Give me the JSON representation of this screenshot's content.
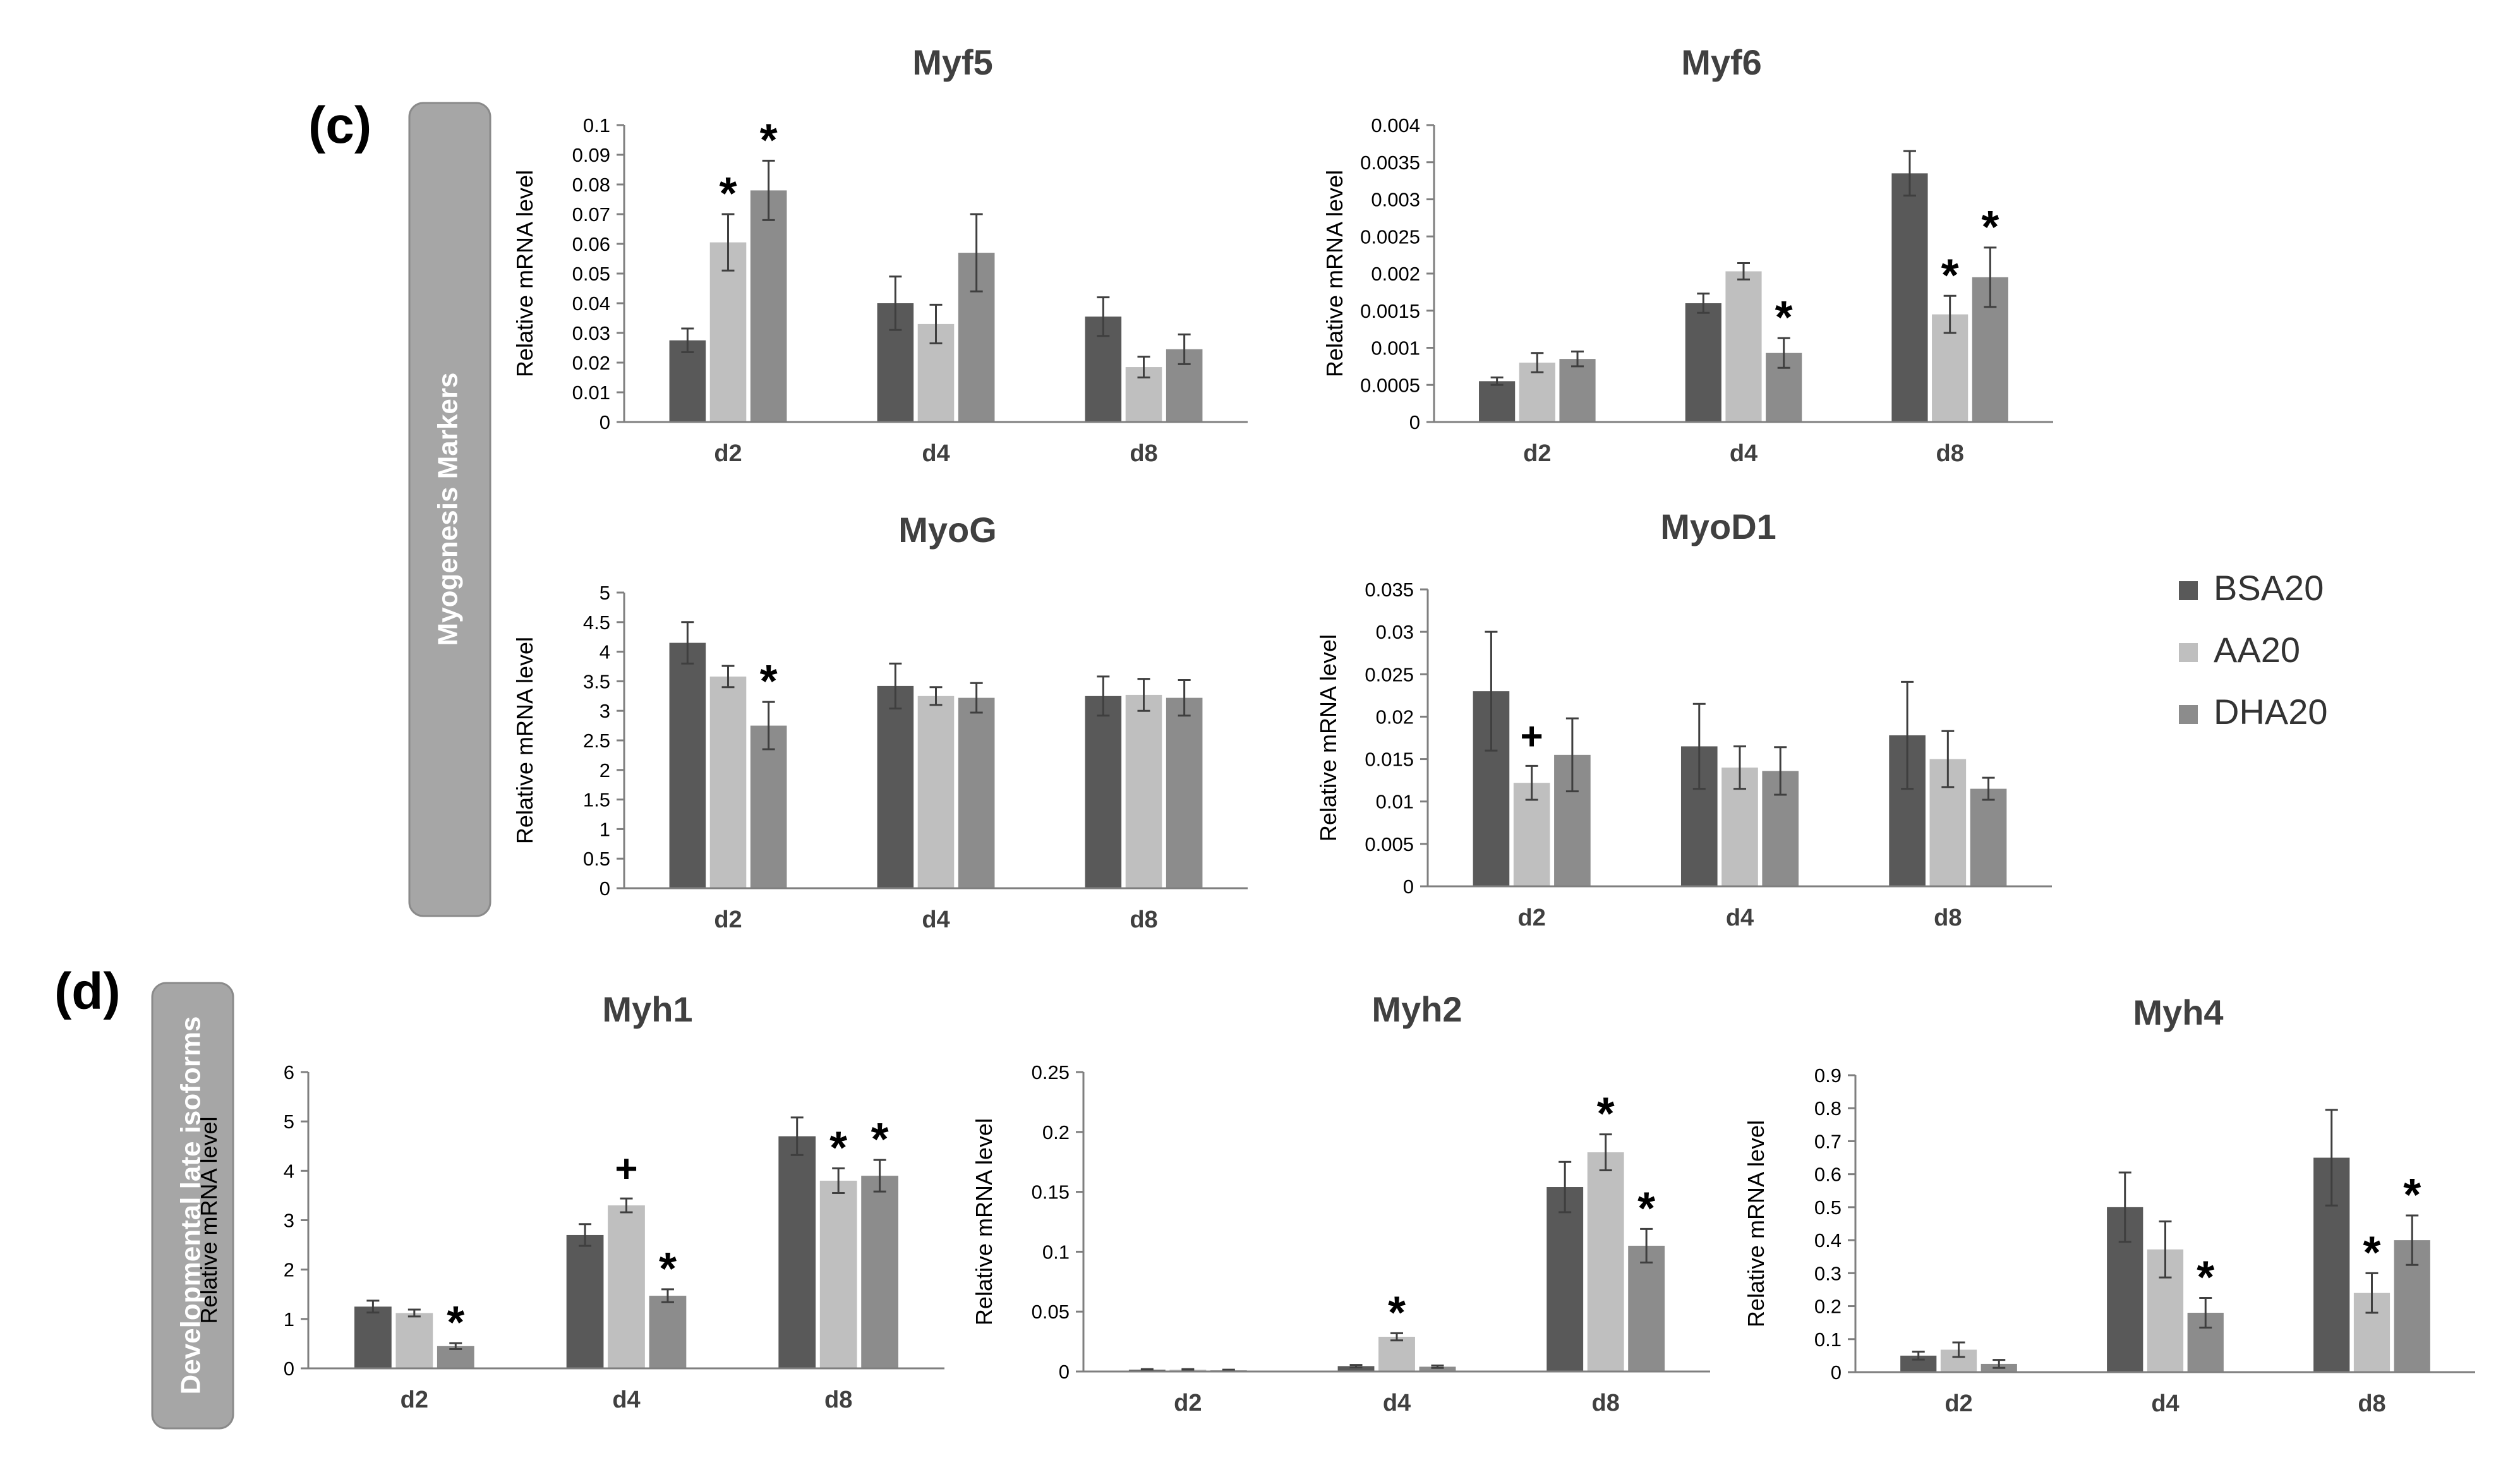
{
  "colors": {
    "BSA20": "#595959",
    "AA20": "#bfbfbf",
    "DHA20": "#8c8c8c",
    "axis": "#7f7f7f",
    "error": "#3f3f3f",
    "text": "#000000",
    "band": "#a6a6a6",
    "band_text": "#ffffff"
  },
  "panel_c": {
    "label": "(c)",
    "band_label": "Myogenesis Markers"
  },
  "panel_d": {
    "label": "(d)",
    "band_label": "Developmental late isoforms"
  },
  "legend": {
    "items": [
      "BSA20",
      "AA20",
      "DHA20"
    ]
  },
  "chart_data": [
    {
      "type": "bar",
      "title": "Myf5",
      "ylabel": "Relative mRNA level",
      "categories": [
        "d2",
        "d4",
        "d8"
      ],
      "ylim": [
        0,
        0.1
      ],
      "yticks": [
        "0",
        "0.01",
        "0.02",
        "0.03",
        "0.04",
        "0.05",
        "0.06",
        "0.07",
        "0.08",
        "0.09",
        "0.1"
      ],
      "series": [
        {
          "name": "BSA20",
          "values": [
            0.0275,
            0.04,
            0.0355
          ],
          "errors": [
            0.004,
            0.009,
            0.0065
          ]
        },
        {
          "name": "AA20",
          "values": [
            0.0605,
            0.033,
            0.0185
          ],
          "errors": [
            0.0095,
            0.0065,
            0.0035
          ]
        },
        {
          "name": "DHA20",
          "values": [
            0.078,
            0.057,
            0.0245
          ],
          "errors": [
            0.01,
            0.013,
            0.005
          ]
        }
      ],
      "annotations": [
        {
          "series": 1,
          "category": 0,
          "text": "*"
        },
        {
          "series": 2,
          "category": 0,
          "text": "*"
        }
      ]
    },
    {
      "type": "bar",
      "title": "Myf6",
      "ylabel": "Relative mRNA level",
      "categories": [
        "d2",
        "d4",
        "d8"
      ],
      "ylim": [
        0,
        0.004
      ],
      "yticks": [
        "0",
        "0.0005",
        "0.001",
        "0.0015",
        "0.002",
        "0.0025",
        "0.003",
        "0.0035",
        "0.004"
      ],
      "series": [
        {
          "name": "BSA20",
          "values": [
            0.00055,
            0.0016,
            0.00335
          ],
          "errors": [
            5e-05,
            0.00013,
            0.0003
          ]
        },
        {
          "name": "AA20",
          "values": [
            0.0008,
            0.00203,
            0.00145
          ],
          "errors": [
            0.00013,
            0.00011,
            0.00025
          ]
        },
        {
          "name": "DHA20",
          "values": [
            0.00085,
            0.00093,
            0.00195
          ],
          "errors": [
            0.0001,
            0.0002,
            0.0004
          ]
        }
      ],
      "annotations": [
        {
          "series": 2,
          "category": 1,
          "text": "*"
        },
        {
          "series": 1,
          "category": 2,
          "text": "*"
        },
        {
          "series": 2,
          "category": 2,
          "text": "*"
        }
      ]
    },
    {
      "type": "bar",
      "title": "MyoG",
      "ylabel": "Relative mRNA level",
      "categories": [
        "d2",
        "d4",
        "d8"
      ],
      "ylim": [
        0,
        5
      ],
      "yticks": [
        "0",
        "0.5",
        "1",
        "1.5",
        "2",
        "2.5",
        "3",
        "3.5",
        "4",
        "4.5",
        "5"
      ],
      "series": [
        {
          "name": "BSA20",
          "values": [
            4.15,
            3.42,
            3.25
          ],
          "errors": [
            0.35,
            0.38,
            0.33
          ]
        },
        {
          "name": "AA20",
          "values": [
            3.58,
            3.25,
            3.27
          ],
          "errors": [
            0.18,
            0.15,
            0.27
          ]
        },
        {
          "name": "DHA20",
          "values": [
            2.75,
            3.22,
            3.22
          ],
          "errors": [
            0.4,
            0.25,
            0.3
          ]
        }
      ],
      "annotations": [
        {
          "series": 2,
          "category": 0,
          "text": "*"
        }
      ]
    },
    {
      "type": "bar",
      "title": "MyoD1",
      "ylabel": "Relative mRNA level",
      "categories": [
        "d2",
        "d4",
        "d8"
      ],
      "ylim": [
        0,
        0.035
      ],
      "yticks": [
        "0",
        "0.005",
        "0.01",
        "0.015",
        "0.02",
        "0.025",
        "0.03",
        "0.035"
      ],
      "series": [
        {
          "name": "BSA20",
          "values": [
            0.023,
            0.0165,
            0.0178
          ],
          "errors": [
            0.007,
            0.005,
            0.0063
          ]
        },
        {
          "name": "AA20",
          "values": [
            0.0122,
            0.014,
            0.015
          ],
          "errors": [
            0.002,
            0.0025,
            0.0033
          ]
        },
        {
          "name": "DHA20",
          "values": [
            0.0155,
            0.0136,
            0.0115
          ],
          "errors": [
            0.0043,
            0.0028,
            0.0013
          ]
        }
      ],
      "annotations": [
        {
          "series": 1,
          "category": 0,
          "text": "+"
        }
      ]
    },
    {
      "type": "bar",
      "title": "Myh1",
      "ylabel": "Relative mRNA level",
      "categories": [
        "d2",
        "d4",
        "d8"
      ],
      "ylim": [
        0,
        6
      ],
      "yticks": [
        "0",
        "1",
        "2",
        "3",
        "4",
        "5",
        "6"
      ],
      "series": [
        {
          "name": "BSA20",
          "values": [
            1.25,
            2.7,
            4.7
          ],
          "errors": [
            0.12,
            0.22,
            0.38
          ]
        },
        {
          "name": "AA20",
          "values": [
            1.12,
            3.3,
            3.8
          ],
          "errors": [
            0.07,
            0.14,
            0.25
          ]
        },
        {
          "name": "DHA20",
          "values": [
            0.45,
            1.47,
            3.9
          ],
          "errors": [
            0.06,
            0.13,
            0.32
          ]
        }
      ],
      "annotations": [
        {
          "series": 2,
          "category": 0,
          "text": "*"
        },
        {
          "series": 1,
          "category": 1,
          "text": "+"
        },
        {
          "series": 2,
          "category": 1,
          "text": "*"
        },
        {
          "series": 1,
          "category": 2,
          "text": "*"
        },
        {
          "series": 2,
          "category": 2,
          "text": "*"
        }
      ]
    },
    {
      "type": "bar",
      "title": "Myh2",
      "ylabel": "Relative mRNA level",
      "categories": [
        "d2",
        "d4",
        "d8"
      ],
      "ylim": [
        0,
        0.25
      ],
      "yticks": [
        "0",
        "0.05",
        "0.1",
        "0.15",
        "0.2",
        "0.25"
      ],
      "series": [
        {
          "name": "BSA20",
          "values": [
            0.0015,
            0.0045,
            0.154
          ],
          "errors": [
            0.0005,
            0.001,
            0.021
          ]
        },
        {
          "name": "AA20",
          "values": [
            0.0015,
            0.029,
            0.183
          ],
          "errors": [
            0.0005,
            0.003,
            0.015
          ]
        },
        {
          "name": "DHA20",
          "values": [
            0.001,
            0.004,
            0.105
          ],
          "errors": [
            0.0005,
            0.001,
            0.014
          ]
        }
      ],
      "annotations": [
        {
          "series": 1,
          "category": 1,
          "text": "*"
        },
        {
          "series": 1,
          "category": 2,
          "text": "*"
        },
        {
          "series": 2,
          "category": 2,
          "text": "*"
        }
      ]
    },
    {
      "type": "bar",
      "title": "Myh4",
      "ylabel": "Relative mRNA level",
      "categories": [
        "d2",
        "d4",
        "d8"
      ],
      "ylim": [
        0,
        0.9
      ],
      "yticks": [
        "0",
        "0.1",
        "0.2",
        "0.3",
        "0.4",
        "0.5",
        "0.6",
        "0.7",
        "0.8",
        "0.9"
      ],
      "series": [
        {
          "name": "BSA20",
          "values": [
            0.05,
            0.5,
            0.65
          ],
          "errors": [
            0.012,
            0.105,
            0.145
          ]
        },
        {
          "name": "AA20",
          "values": [
            0.068,
            0.372,
            0.24
          ],
          "errors": [
            0.022,
            0.085,
            0.06
          ]
        },
        {
          "name": "DHA20",
          "values": [
            0.025,
            0.18,
            0.4
          ],
          "errors": [
            0.012,
            0.045,
            0.075
          ]
        }
      ],
      "annotations": [
        {
          "series": 2,
          "category": 1,
          "text": "*"
        },
        {
          "series": 1,
          "category": 2,
          "text": "*"
        },
        {
          "series": 2,
          "category": 2,
          "text": "*"
        }
      ]
    }
  ]
}
